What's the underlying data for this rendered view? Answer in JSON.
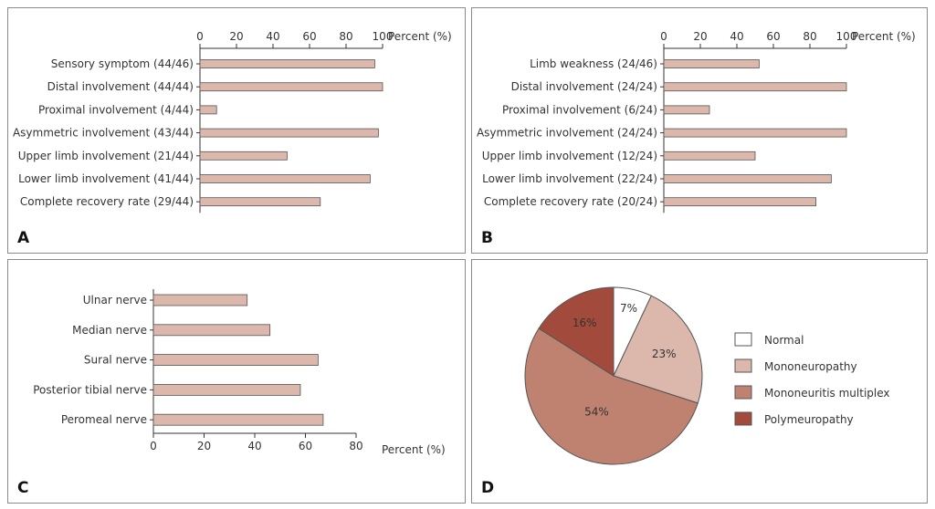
{
  "colors": {
    "bar_fill": "#dbb8ab",
    "bar_stroke": "#555555",
    "axis": "#333333",
    "pie_normal": "#ffffff",
    "pie_mononeuropathy": "#dbb8ab",
    "pie_mononeuritis": "#bf8270",
    "pie_polyneuropathy": "#a24a3c"
  },
  "chart_data": [
    {
      "panel": "A",
      "type": "bar",
      "orientation": "horizontal",
      "axis_position": "top",
      "xlabel": "Percent (%)",
      "xlim": [
        0,
        100
      ],
      "ticks": [
        0,
        20,
        40,
        60,
        80,
        100
      ],
      "categories": [
        "Sensory symptom (44/46)",
        "Distal involvement (44/44)",
        "Proximal involvement (4/44)",
        "Asymmetric involvement (43/44)",
        "Upper limb involvement (21/44)",
        "Lower limb involvement (41/44)",
        "Complete recovery rate (29/44)"
      ],
      "values": [
        95.7,
        100,
        9.1,
        97.7,
        47.7,
        93.2,
        65.9
      ]
    },
    {
      "panel": "B",
      "type": "bar",
      "orientation": "horizontal",
      "axis_position": "top",
      "xlabel": "Percent (%)",
      "xlim": [
        0,
        100
      ],
      "ticks": [
        0,
        20,
        40,
        60,
        80,
        100
      ],
      "categories": [
        "Limb weakness (24/46)",
        "Distal involvement (24/24)",
        "Proximal involvement (6/24)",
        "Asymmetric involvement (24/24)",
        "Upper limb involvement (12/24)",
        "Lower limb involvement (22/24)",
        "Complete recovery rate (20/24)"
      ],
      "values": [
        52.2,
        100,
        25,
        100,
        50,
        91.7,
        83.3
      ]
    },
    {
      "panel": "C",
      "type": "bar",
      "orientation": "horizontal",
      "axis_position": "bottom",
      "xlabel": "Percent (%)",
      "xlim": [
        0,
        80
      ],
      "ticks": [
        0,
        20,
        40,
        60,
        80
      ],
      "categories": [
        "Ulnar nerve",
        "Median nerve",
        "Sural nerve",
        "Posterior tibial nerve",
        "Peromeal nerve"
      ],
      "values": [
        37,
        46,
        65,
        58,
        67
      ]
    },
    {
      "panel": "D",
      "type": "pie",
      "legend_position": "right",
      "slices": [
        {
          "label": "Normal",
          "value": 7,
          "text": "7%",
          "color_key": "pie_normal"
        },
        {
          "label": "Mononeuropathy",
          "value": 23,
          "text": "23%",
          "color_key": "pie_mononeuropathy"
        },
        {
          "label": "Mononeuritis multiplex",
          "value": 54,
          "text": "54%",
          "color_key": "pie_mononeuritis"
        },
        {
          "label": "Polymeuropathy",
          "value": 16,
          "text": "16%",
          "color_key": "pie_polyneuropathy"
        }
      ]
    }
  ],
  "panel_labels": [
    "A",
    "B",
    "C",
    "D"
  ]
}
